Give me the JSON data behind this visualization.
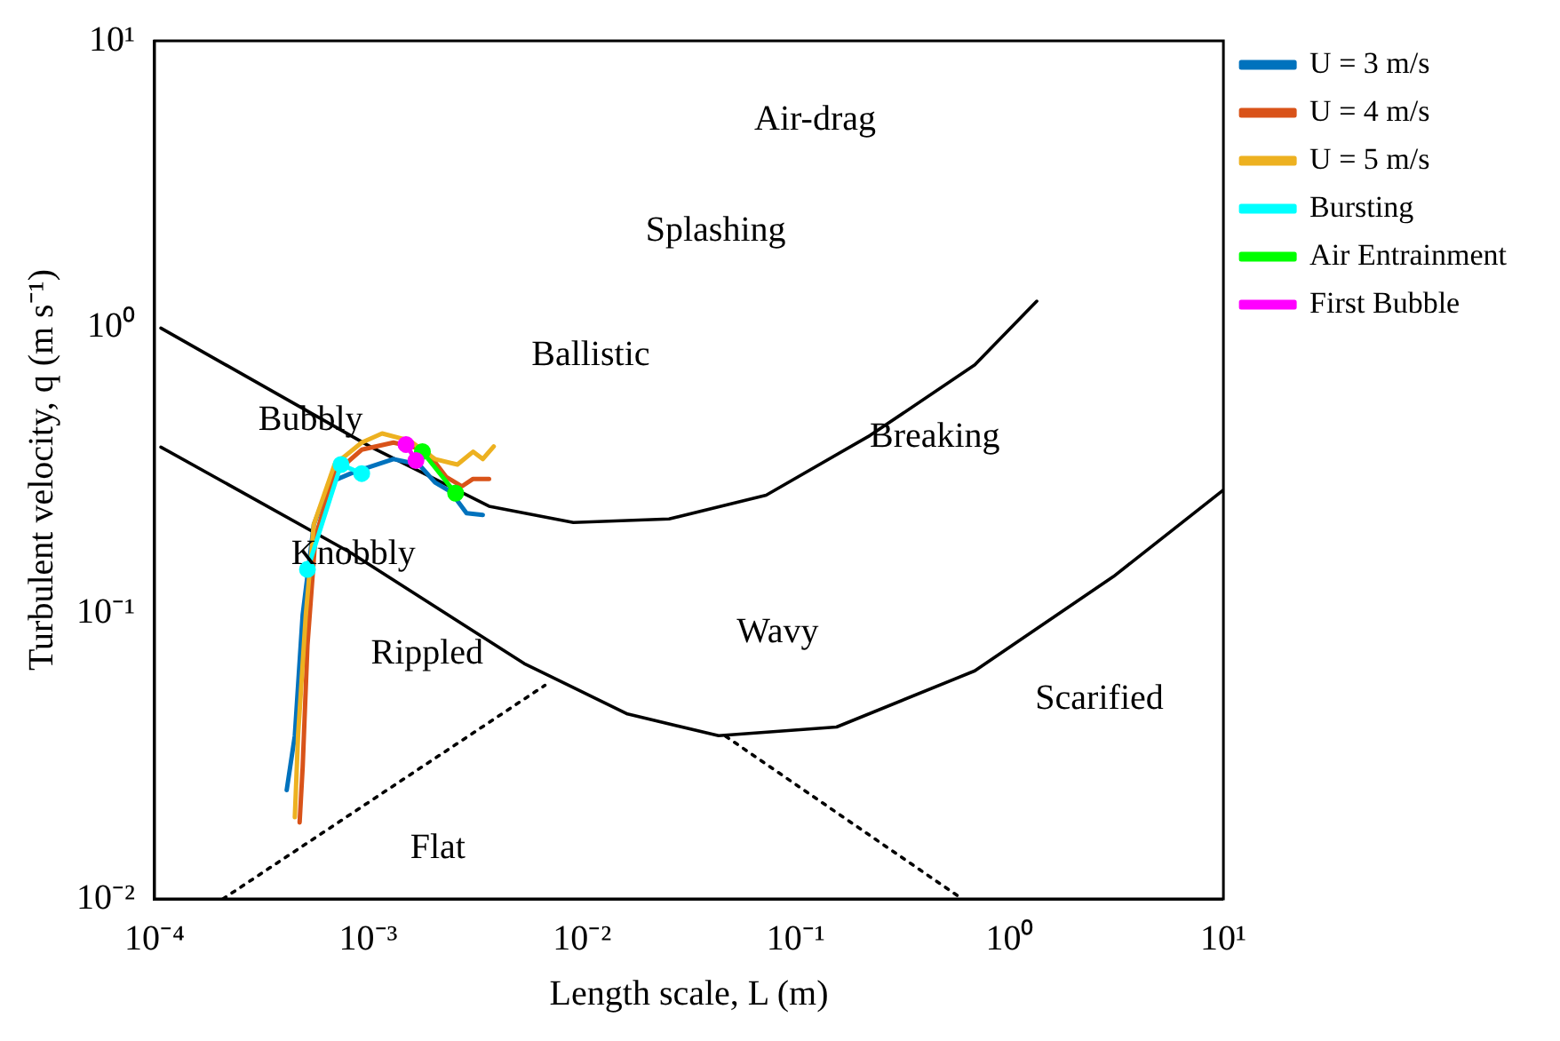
{
  "chart_data": {
    "type": "line",
    "xlabel": "Length scale, L (m)",
    "ylabel": "Turbulent velocity, q (m s⁻¹)",
    "log": "xy",
    "legend": "top right",
    "xlim": [
      0.0001,
      10
    ],
    "ylim": [
      0.01,
      10
    ],
    "xticks": [
      {
        "value": 0.0001,
        "label": "10⁻⁴"
      },
      {
        "value": 0.001,
        "label": "10⁻³"
      },
      {
        "value": 0.01,
        "label": "10⁻²"
      },
      {
        "value": 0.1,
        "label": "10⁻¹"
      },
      {
        "value": 1,
        "label": "10⁰"
      },
      {
        "value": 10,
        "label": "10¹"
      }
    ],
    "yticks": [
      {
        "value": 0.01,
        "label": "10⁻²"
      },
      {
        "value": 0.1,
        "label": "10⁻¹"
      },
      {
        "value": 1,
        "label": "10⁰"
      },
      {
        "value": 10,
        "label": "10¹"
      }
    ],
    "series": [
      {
        "color": "#000000",
        "line_style": "solid",
        "marker": "none",
        "x": [
          0.000107,
          0.00103,
          0.00367,
          0.0091,
          0.0255,
          0.0726,
          0.222,
          0.687,
          1.34
        ],
        "values": [
          0.99,
          0.38,
          0.236,
          0.207,
          0.213,
          0.258,
          0.417,
          0.736,
          1.23
        ]
      },
      {
        "color": "#000000",
        "line_style": "solid",
        "marker": "none",
        "x": [
          0.000107,
          0.00083,
          0.00536,
          0.0163,
          0.0435,
          0.155,
          0.687,
          3.06,
          10
        ],
        "values": [
          0.38,
          0.162,
          0.0665,
          0.0443,
          0.0372,
          0.0399,
          0.0627,
          0.134,
          0.269
        ]
      },
      {
        "color": "#000000",
        "line_style": "dotted",
        "marker": "none",
        "x": [
          0.000209,
          0.0067
        ],
        "values": [
          0.01,
          0.0558
        ]
      },
      {
        "color": "#000000",
        "line_style": "dotted",
        "marker": "none",
        "x": [
          0.047,
          0.6
        ],
        "values": [
          0.037,
          0.01
        ]
      },
      {
        "name": "U = 3 m/s",
        "color": "#0072bd",
        "line_style": "solid",
        "marker": "none",
        "x": [
          0.000415,
          0.000453,
          0.000493,
          0.000556,
          0.000661,
          0.000826,
          0.00098,
          0.00131,
          0.00173,
          0.00205,
          0.00243,
          0.00288,
          0.00343
        ],
        "values": [
          0.024,
          0.0372,
          0.0986,
          0.204,
          0.286,
          0.307,
          0.321,
          0.345,
          0.33,
          0.286,
          0.265,
          0.223,
          0.22
        ]
      },
      {
        "name": "U = 4 m/s",
        "color": "#d95319",
        "line_style": "solid",
        "marker": "none",
        "x": [
          0.000477,
          0.000493,
          0.000519,
          0.000566,
          0.000695,
          0.000931,
          0.00131,
          0.00185,
          0.00231,
          0.00274,
          0.00309,
          0.00367
        ],
        "values": [
          0.0185,
          0.029,
          0.077,
          0.185,
          0.307,
          0.372,
          0.394,
          0.372,
          0.299,
          0.277,
          0.294,
          0.294
        ]
      },
      {
        "name": "U = 5 m/s",
        "color": "#edb120",
        "line_style": "solid",
        "marker": "none",
        "x": [
          0.000453,
          0.000469,
          0.00051,
          0.000556,
          0.000695,
          0.000931,
          0.00116,
          0.00156,
          0.00205,
          0.00261,
          0.00309,
          0.00343,
          0.00386
        ],
        "values": [
          0.0193,
          0.0372,
          0.0986,
          0.204,
          0.33,
          0.394,
          0.424,
          0.4,
          0.345,
          0.33,
          0.366,
          0.345,
          0.382
        ]
      },
      {
        "name": "Bursting",
        "color": "#00ffff",
        "line_style": "solid",
        "marker": "circle",
        "x": [
          0.000519,
          0.000745,
          0.000931
        ],
        "values": [
          0.142,
          0.33,
          0.307
        ]
      },
      {
        "name": "Air Entrainment",
        "color": "#00ff00",
        "line_style": "solid",
        "marker": "circle",
        "x": [
          0.00179,
          0.00256
        ],
        "values": [
          0.366,
          0.262
        ]
      },
      {
        "name": "First Bubble",
        "color": "#ff00ff",
        "line_style": "solid",
        "marker": "circle",
        "x": [
          0.0015,
          0.00167
        ],
        "values": [
          0.388,
          0.341
        ]
      }
    ],
    "annotations": [
      "Air-drag",
      "Splashing",
      "Ballistic",
      "Bubbly",
      "Breaking",
      "Knobbly",
      "Rippled",
      "Wavy",
      "Scarified",
      "Flat"
    ]
  }
}
